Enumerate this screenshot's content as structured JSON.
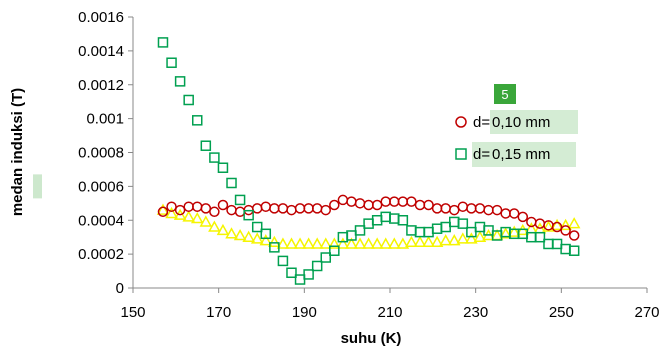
{
  "chart_data": {
    "type": "scatter",
    "xlabel": "suhu (K)",
    "ylabel": "medan induksi (T)",
    "xlim": [
      150,
      270
    ],
    "ylim": [
      0,
      0.0016
    ],
    "x_ticks": [
      "150",
      "170",
      "190",
      "210",
      "230",
      "250",
      "270"
    ],
    "y_ticks": [
      "0",
      "0.0002",
      "0.0004",
      "0.0006",
      "0.0008",
      "0.001",
      "0.0012",
      "0.0014",
      "0.0016"
    ],
    "highlighted_tick": "0.0006",
    "grid": false,
    "legend": "right",
    "marker_annotation": "5",
    "series": [
      {
        "name": "d=0,10 mm",
        "label_prefix": "d=",
        "label_value": "0,10 mm",
        "marker": "circle",
        "color": "#c00000",
        "x": [
          157,
          159,
          161,
          163,
          165,
          167,
          169,
          171,
          173,
          175,
          177,
          179,
          181,
          183,
          185,
          187,
          189,
          191,
          193,
          195,
          197,
          199,
          201,
          203,
          205,
          207,
          209,
          211,
          213,
          215,
          217,
          219,
          221,
          223,
          225,
          227,
          229,
          231,
          233,
          235,
          237,
          239,
          241,
          243,
          245,
          247,
          249,
          251,
          253
        ],
        "y": [
          0.00045,
          0.00048,
          0.00046,
          0.00048,
          0.00048,
          0.00047,
          0.00045,
          0.00049,
          0.00046,
          0.00045,
          0.00046,
          0.00047,
          0.00048,
          0.00047,
          0.00047,
          0.00046,
          0.00047,
          0.00047,
          0.00047,
          0.00046,
          0.00049,
          0.00052,
          0.00051,
          0.0005,
          0.00049,
          0.00049,
          0.00051,
          0.00051,
          0.00051,
          0.00051,
          0.00049,
          0.00049,
          0.00047,
          0.00047,
          0.00046,
          0.00048,
          0.00047,
          0.00047,
          0.00046,
          0.00046,
          0.00044,
          0.00044,
          0.00042,
          0.00039,
          0.00038,
          0.00037,
          0.00036,
          0.00034,
          0.00031
        ]
      },
      {
        "name": "d=0,15 mm",
        "label_prefix": "d=",
        "label_value": "0,15 mm",
        "marker": "square",
        "color": "#00a050",
        "x": [
          157,
          159,
          161,
          163,
          165,
          167,
          169,
          171,
          173,
          175,
          177,
          179,
          181,
          183,
          185,
          187,
          189,
          191,
          193,
          195,
          197,
          199,
          201,
          203,
          205,
          207,
          209,
          211,
          213,
          215,
          217,
          219,
          221,
          223,
          225,
          227,
          229,
          231,
          233,
          235,
          237,
          239,
          241,
          243,
          245,
          247,
          249,
          251,
          253
        ],
        "y": [
          0.00145,
          0.00133,
          0.00122,
          0.00111,
          0.00099,
          0.00084,
          0.00077,
          0.00071,
          0.00062,
          0.00052,
          0.00043,
          0.00036,
          0.00032,
          0.00024,
          0.00016,
          9e-05,
          5e-05,
          8e-05,
          0.00013,
          0.00018,
          0.00022,
          0.0003,
          0.00031,
          0.00034,
          0.00038,
          0.0004,
          0.00042,
          0.00041,
          0.0004,
          0.00034,
          0.00033,
          0.00033,
          0.00035,
          0.00036,
          0.00039,
          0.00038,
          0.00033,
          0.00036,
          0.00034,
          0.00031,
          0.00033,
          0.00032,
          0.00032,
          0.0003,
          0.0003,
          0.00026,
          0.00026,
          0.00023,
          0.00022
        ]
      },
      {
        "marker": "triangle",
        "color": "#f5f500",
        "x": [
          157,
          159,
          161,
          163,
          165,
          167,
          169,
          171,
          173,
          175,
          177,
          179,
          181,
          183,
          185,
          187,
          189,
          191,
          193,
          195,
          197,
          199,
          201,
          203,
          205,
          207,
          209,
          211,
          213,
          215,
          217,
          219,
          221,
          223,
          225,
          227,
          229,
          231,
          233,
          235,
          237,
          239,
          241,
          243,
          245,
          247,
          249,
          251,
          253
        ],
        "y": [
          0.00046,
          0.00044,
          0.00043,
          0.00042,
          0.00041,
          0.00039,
          0.00036,
          0.00034,
          0.00032,
          0.00031,
          0.0003,
          0.00029,
          0.00028,
          0.00027,
          0.00026,
          0.00026,
          0.00026,
          0.00026,
          0.00026,
          0.00026,
          0.00026,
          0.00026,
          0.00026,
          0.00026,
          0.00026,
          0.00026,
          0.00026,
          0.00026,
          0.00026,
          0.00027,
          0.00027,
          0.00027,
          0.00027,
          0.00028,
          0.00028,
          0.00029,
          0.00029,
          0.0003,
          0.00031,
          0.00031,
          0.00032,
          0.00033,
          0.00034,
          0.00035,
          0.00035,
          0.00036,
          0.00037,
          0.00037,
          0.00038
        ]
      }
    ]
  }
}
